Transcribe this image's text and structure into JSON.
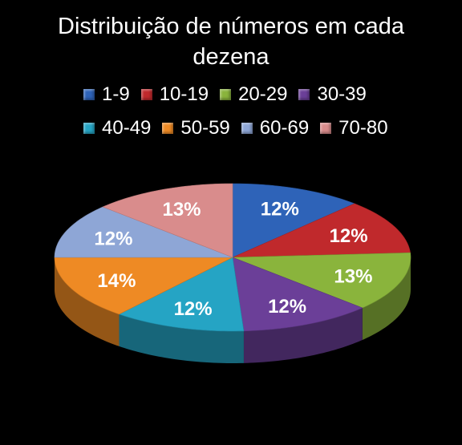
{
  "title": "Distribuição de números em cada dezena",
  "title_lines": [
    "Distribuição de números em cada",
    "dezena"
  ],
  "chart_data": {
    "type": "pie",
    "three_d": true,
    "title": "Distribuição de números em cada dezena",
    "legend_placement": "top",
    "categories": [
      "1-9",
      "10-19",
      "20-29",
      "30-39",
      "40-49",
      "50-59",
      "60-69",
      "70-80"
    ],
    "values": [
      12,
      12,
      13,
      12,
      12,
      14,
      12,
      13
    ],
    "labels": [
      "12%",
      "12%",
      "13%",
      "12%",
      "12%",
      "14%",
      "12%",
      "13%"
    ],
    "colors": [
      "#2e63b8",
      "#c0292c",
      "#8ab43c",
      "#6b3f98",
      "#25a4c4",
      "#ee8a24",
      "#8ea6d6",
      "#d98c8c"
    ]
  }
}
